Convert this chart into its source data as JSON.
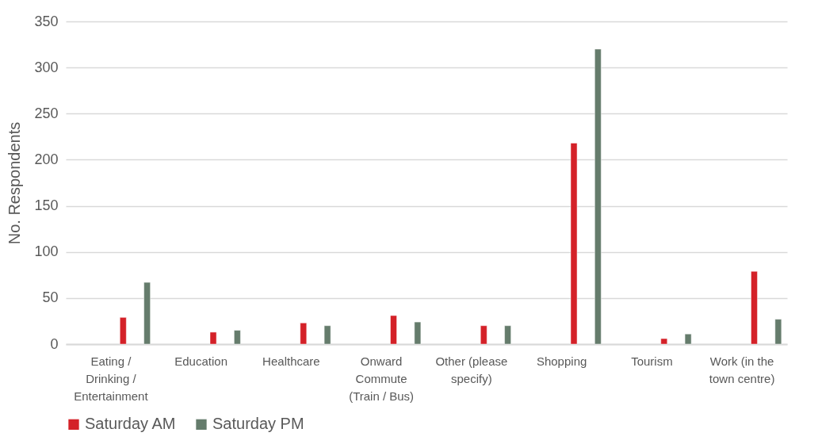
{
  "chart_data": {
    "type": "bar",
    "ylabel": "No. Respondents",
    "categories": [
      "Eating / Drinking / Entertainment",
      "Education",
      "Healthcare",
      "Onward Commute (Train / Bus)",
      "Other (please specify)",
      "Shopping",
      "Tourism",
      "Work (in the town centre)"
    ],
    "series": [
      {
        "name": "Saturday AM",
        "color": "#d42128",
        "values": [
          29,
          13,
          23,
          31,
          20,
          218,
          6,
          79
        ]
      },
      {
        "name": "Saturday PM",
        "color": "#657c6c",
        "values": [
          67,
          15,
          20,
          24,
          20,
          320,
          11,
          27
        ]
      }
    ],
    "ylim": [
      0,
      350
    ],
    "yticks": [
      0,
      50,
      100,
      150,
      200,
      250,
      300,
      350
    ],
    "grid": "y",
    "legend": "bottom"
  }
}
